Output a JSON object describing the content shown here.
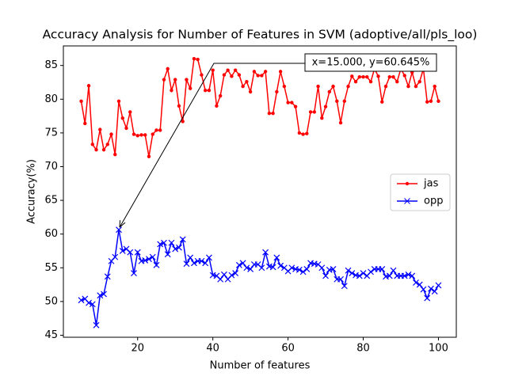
{
  "chart_data": {
    "type": "line",
    "title": "Accuracy Analysis for Number of Features in SVM (adoptive/all/pls_loo)",
    "xlabel": "Number of features",
    "ylabel": "Accuracy(%)",
    "x": [
      5,
      6,
      7,
      8,
      9,
      10,
      11,
      12,
      13,
      14,
      15,
      16,
      17,
      18,
      19,
      20,
      21,
      22,
      23,
      24,
      25,
      26,
      27,
      28,
      29,
      30,
      31,
      32,
      33,
      34,
      35,
      36,
      37,
      38,
      39,
      40,
      41,
      42,
      43,
      44,
      45,
      46,
      47,
      48,
      49,
      50,
      51,
      52,
      53,
      54,
      55,
      56,
      57,
      58,
      59,
      60,
      61,
      62,
      63,
      64,
      65,
      66,
      67,
      68,
      69,
      70,
      71,
      72,
      73,
      74,
      75,
      76,
      77,
      78,
      79,
      80,
      81,
      82,
      83,
      84,
      85,
      86,
      87,
      88,
      89,
      90,
      91,
      92,
      93,
      94,
      95,
      96,
      97,
      98,
      99,
      100
    ],
    "series": [
      {
        "name": "jas",
        "color": "#ff0000",
        "marker": "dot",
        "values": [
          79.7,
          76.4,
          82,
          73.3,
          72.5,
          75.5,
          72.5,
          73.3,
          74.8,
          71.8,
          79.7,
          77.2,
          75.7,
          78.1,
          74.8,
          74.6,
          74.7,
          74.7,
          71.5,
          74.8,
          75.4,
          75.4,
          82.9,
          84.5,
          81.3,
          82.9,
          79.0,
          76.7,
          82.9,
          81.6,
          86.0,
          85.9,
          83.6,
          81.3,
          81.3,
          84.3,
          79.0,
          80.5,
          83.6,
          84.3,
          83.4,
          84.3,
          83.6,
          81.9,
          82.6,
          81.1,
          84.1,
          83.5,
          83.5,
          84.1,
          77.9,
          77.9,
          81.1,
          84.1,
          81.9,
          79.5,
          79.5,
          78.9,
          75.0,
          74.8,
          74.9,
          78.1,
          78.1,
          81.9,
          77.2,
          78.9,
          81.1,
          81.9,
          79.7,
          76.5,
          79.7,
          81.9,
          83.4,
          82.6,
          83.3,
          83.3,
          83.3,
          82.6,
          84.5,
          83.4,
          79.6,
          81.9,
          83.3,
          83.3,
          82.6,
          84.5,
          83.5,
          81.9,
          84.0,
          81.9,
          82.6,
          84.5,
          79.6,
          79.7,
          81.9,
          79.7
        ]
      },
      {
        "name": "opp",
        "color": "#0000ff",
        "marker": "x",
        "values": [
          50.2,
          50.4,
          49.8,
          49.6,
          46.5,
          50.9,
          51.1,
          53.7,
          56.0,
          56.6,
          60.645,
          57.5,
          57.8,
          57.3,
          54.2,
          57.3,
          56.0,
          56.1,
          56.3,
          56.6,
          55.4,
          58.5,
          58.7,
          57.0,
          58.7,
          57.8,
          58.0,
          59.2,
          55.6,
          56.5,
          55.7,
          56.0,
          56.0,
          55.7,
          56.5,
          53.9,
          53.8,
          53.3,
          54.0,
          53.3,
          53.9,
          54.2,
          55.4,
          55.7,
          55.0,
          54.8,
          55.5,
          55.5,
          55.0,
          57.3,
          55.2,
          55.1,
          56.5,
          55.3,
          55.0,
          54.5,
          55.0,
          54.8,
          54.7,
          54.4,
          54.8,
          55.7,
          55.6,
          55.5,
          55.0,
          53.8,
          54.7,
          54.8,
          53.3,
          53.3,
          52.3,
          54.6,
          54.2,
          53.9,
          53.8,
          54.2,
          53.8,
          54.4,
          54.8,
          54.8,
          54.8,
          53.7,
          53.8,
          54.6,
          53.8,
          53.8,
          53.8,
          54.0,
          53.8,
          52.8,
          52.5,
          51.8,
          50.5,
          51.9,
          51.5,
          52.4
        ]
      }
    ],
    "annotation": "x=15.000, y=60.645%",
    "xlim": [
      0.25,
      104.75
    ],
    "xticks": [
      20,
      40,
      60,
      80,
      100
    ],
    "ylim": [
      44.7,
      87.9
    ],
    "yticks": [
      45,
      50,
      55,
      60,
      65,
      70,
      75,
      80,
      85
    ],
    "legend": "center right"
  }
}
